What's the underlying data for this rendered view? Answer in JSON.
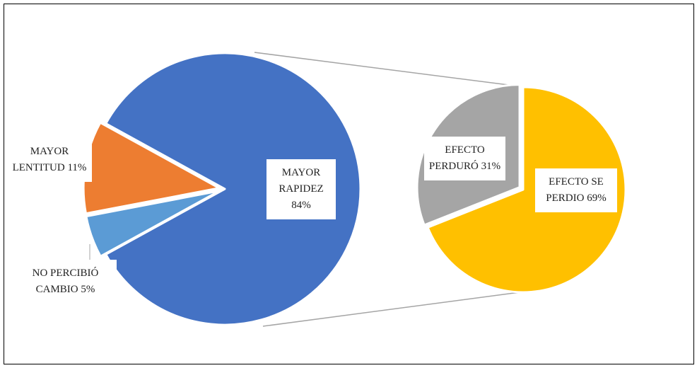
{
  "chart_data": [
    {
      "type": "pie",
      "categories": [
        "MAYOR RAPIDEZ",
        "MAYOR LENTITUD",
        "NO PERCIBIÓ CAMBIO"
      ],
      "values": [
        84,
        11,
        5
      ],
      "value_labels": [
        "84%",
        "11%",
        "5%"
      ],
      "colors": [
        "#4472c4",
        "#ed7d31",
        "#5b9bd5"
      ]
    },
    {
      "type": "pie",
      "categories": [
        "EFECTO PERDURÓ",
        "EFECTO SE PERDIO"
      ],
      "values": [
        31,
        69
      ],
      "value_labels": [
        "31%",
        "69%"
      ],
      "colors": [
        "#a5a5a5",
        "#ffc000"
      ]
    }
  ]
}
